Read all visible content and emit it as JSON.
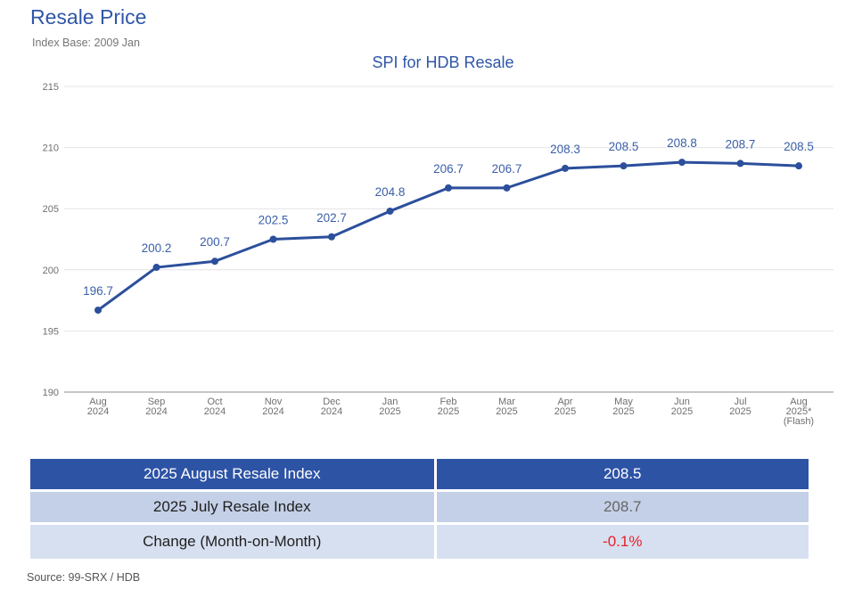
{
  "header": {
    "title": "Resale Price",
    "subtitle": "Index Base: 2009 Jan"
  },
  "colors": {
    "title": "#2f56a8",
    "line": "#2c4f9c",
    "table_header_bg": "#2d53a5",
    "table_row2_bg": "#c4d0e7",
    "table_row3_bg": "#d7e0f0",
    "negative": "#e8202a"
  },
  "chart_data": {
    "type": "line",
    "title": "SPI for HDB Resale",
    "xlabel": "",
    "ylabel": "",
    "ylim": [
      190,
      215
    ],
    "yticks": [
      "190",
      "195",
      "200",
      "205",
      "210",
      "215"
    ],
    "grid": true,
    "categories": [
      [
        "Aug",
        "2024"
      ],
      [
        "Sep",
        "2024"
      ],
      [
        "Oct",
        "2024"
      ],
      [
        "Nov",
        "2024"
      ],
      [
        "Dec",
        "2024"
      ],
      [
        "Jan",
        "2025"
      ],
      [
        "Feb",
        "2025"
      ],
      [
        "Mar",
        "2025"
      ],
      [
        "Apr",
        "2025"
      ],
      [
        "May",
        "2025"
      ],
      [
        "Jun",
        "2025"
      ],
      [
        "Jul",
        "2025"
      ],
      [
        "Aug",
        "2025*",
        "(Flash)"
      ]
    ],
    "series": [
      {
        "values": [
          196.7,
          200.2,
          200.7,
          202.5,
          202.7,
          204.8,
          206.7,
          206.7,
          208.3,
          208.5,
          208.8,
          208.7,
          208.5
        ],
        "labels": [
          "196.7",
          "200.2",
          "200.7",
          "202.5",
          "202.7",
          "204.8",
          "206.7",
          "206.7",
          "208.3",
          "208.5",
          "208.8",
          "208.7",
          "208.5"
        ]
      }
    ]
  },
  "table": {
    "rows": [
      {
        "label": "2025 August Resale Index",
        "value": "208.5"
      },
      {
        "label": "2025 July Resale Index",
        "value": "208.7"
      },
      {
        "label": "Change (Month-on-Month)",
        "value": "-0.1%"
      }
    ]
  },
  "footer": {
    "source": "Source: 99-SRX / HDB"
  }
}
